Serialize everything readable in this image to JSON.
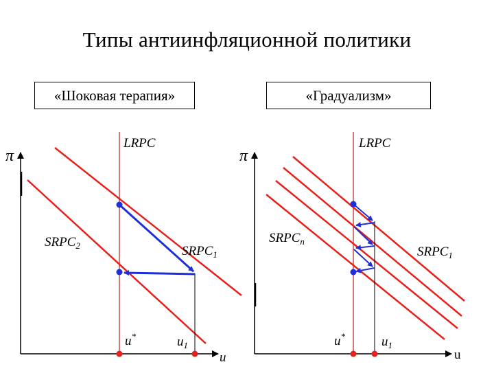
{
  "title": "Типы антиинфляционной политики",
  "panels": {
    "left": {
      "heading": "«Шоковая терапия»",
      "pi_label": "π",
      "lrpc": "LRPC",
      "srpc_a": "SRPC",
      "srpc_a_sub": "2",
      "srpc_b": "SRPC",
      "srpc_b_sub": "1",
      "u_star": "u",
      "u_star_sup": "*",
      "u1": "u",
      "u1_sub": "1",
      "x_label": "u"
    },
    "right": {
      "heading": "«Градуализм»",
      "pi_label": "π",
      "lrpc": "LRPC",
      "srpc_a": "SRPC",
      "srpc_a_sub": "n",
      "srpc_b": "SRPC",
      "srpc_b_sub": "1",
      "u_star": "u",
      "u_star_sup": "*",
      "u1": "u",
      "u1_sub": "1",
      "x_label": "u"
    }
  },
  "colors": {
    "curve": "#e8201b",
    "lrpc": "#b22222",
    "path": "#1f2fd8",
    "axis": "#000000"
  }
}
